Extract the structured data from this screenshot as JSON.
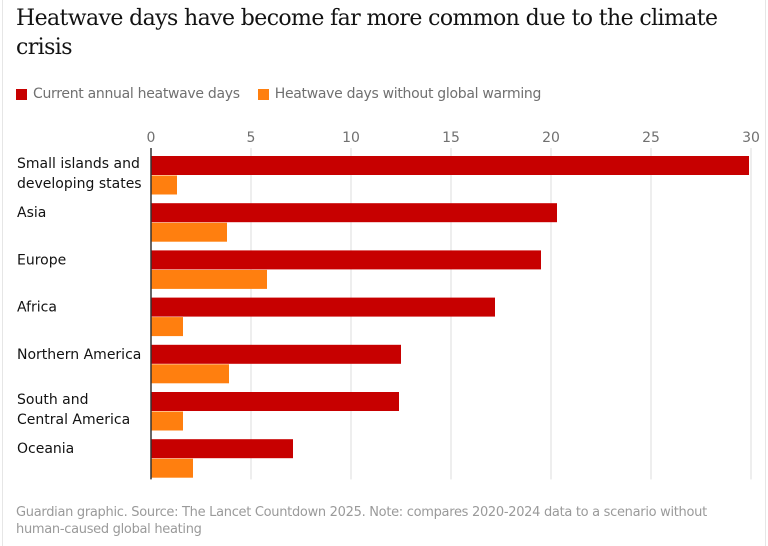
{
  "title": "Heatwave days have become far more common due to the climate crisis",
  "legend": [
    {
      "label": "Current annual heatwave days",
      "color": "#c70000"
    },
    {
      "label": "Heatwave days without global warming",
      "color": "#ff7f0f"
    }
  ],
  "source": "Guardian graphic. Source: The Lancet Countdown 2025. Note: compares 2020-2024 data to a scenario without human-caused global heating",
  "chart_data": {
    "type": "bar",
    "orientation": "horizontal",
    "title": "Heatwave days have become far more common due to the climate crisis",
    "xlabel": "",
    "ylabel": "",
    "xlim": [
      0,
      30
    ],
    "xticks": [
      0,
      5,
      10,
      15,
      20,
      25,
      30
    ],
    "grid": true,
    "legend_position": "top-left",
    "categories": [
      [
        "Small islands and",
        "developing states"
      ],
      [
        "Asia"
      ],
      [
        "Europe"
      ],
      [
        "Africa"
      ],
      [
        "Northern America"
      ],
      [
        "South and",
        "Central America"
      ],
      [
        "Oceania"
      ]
    ],
    "series": [
      {
        "name": "Current annual heatwave days",
        "color": "#c70000",
        "values": [
          29.9,
          20.3,
          19.5,
          17.2,
          12.5,
          12.4,
          7.1
        ]
      },
      {
        "name": "Heatwave days without global warming",
        "color": "#ff7f0f",
        "values": [
          1.3,
          3.8,
          5.8,
          1.6,
          3.9,
          1.6,
          2.1
        ]
      }
    ]
  }
}
